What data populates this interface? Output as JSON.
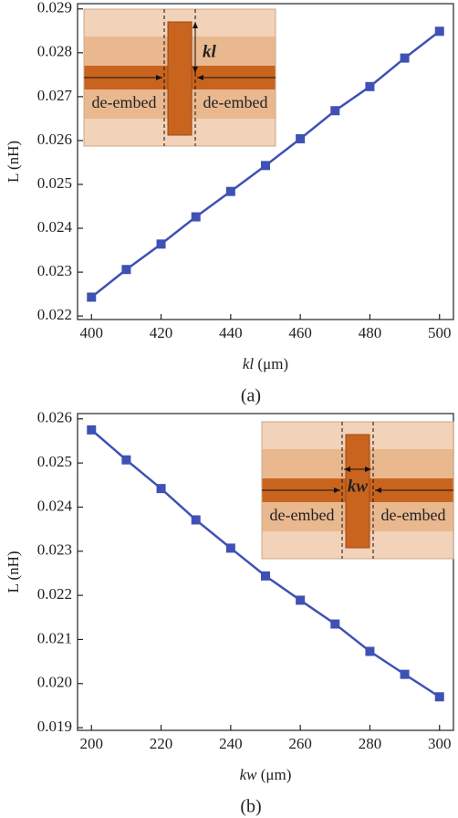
{
  "chart_data": [
    {
      "type": "line",
      "caption": "(a)",
      "xlabel_var": "kl",
      "xlabel_unit": "(μm)",
      "ylabel": "L (nH)",
      "x": [
        400,
        410,
        420,
        430,
        440,
        450,
        460,
        470,
        480,
        490,
        500
      ],
      "values": [
        0.02243,
        0.02306,
        0.02364,
        0.02426,
        0.02484,
        0.02543,
        0.02604,
        0.02668,
        0.02723,
        0.02788,
        0.02849
      ],
      "color": "#3f51b5",
      "xlim": [
        396,
        504
      ],
      "xticks": [
        400,
        420,
        440,
        460,
        480,
        500
      ],
      "ylim": [
        0.02192,
        0.02912
      ],
      "yticks": [
        0.022,
        0.023,
        0.024,
        0.025,
        0.026,
        0.027,
        0.028,
        0.029
      ],
      "inset": {
        "label": "kl",
        "left_text": "de-embed",
        "right_text": "de-embed"
      }
    },
    {
      "type": "line",
      "caption": "(b)",
      "xlabel_var": "kw",
      "xlabel_unit": "(μm)",
      "ylabel": "L (nH)",
      "x": [
        200,
        210,
        220,
        230,
        240,
        250,
        260,
        270,
        280,
        290,
        300
      ],
      "values": [
        0.02575,
        0.02507,
        0.02442,
        0.02371,
        0.02307,
        0.02244,
        0.02189,
        0.02135,
        0.02073,
        0.02021,
        0.0197
      ],
      "color": "#3f51b5",
      "xlim": [
        196,
        304
      ],
      "xticks": [
        200,
        220,
        240,
        260,
        280,
        300
      ],
      "ylim": [
        0.01894,
        0.02612
      ],
      "yticks": [
        0.019,
        {
          "value": 0.02,
          "label": "0.020"
        },
        0.021,
        0.022,
        0.023,
        0.024,
        0.025,
        0.026
      ],
      "inset": {
        "label": "kw",
        "left_text": "de-embed",
        "right_text": "de-embed"
      }
    }
  ]
}
